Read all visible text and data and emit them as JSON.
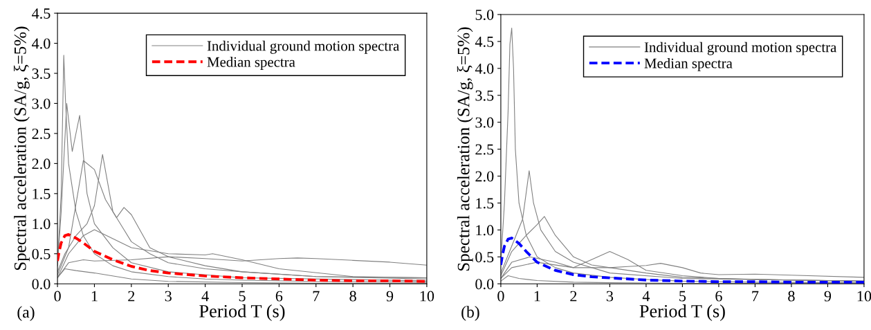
{
  "chart_data": [
    {
      "type": "line",
      "xlabel": "Period T (s)",
      "ylabel": "Spectral acceleration (SA/g, ξ=5%)",
      "xlim": [
        0,
        10
      ],
      "xticks": [
        0,
        1,
        2,
        3,
        4,
        5,
        6,
        7,
        8,
        9,
        10
      ],
      "ylim": [
        0,
        4.5
      ],
      "yticks": [
        {
          "value": 0,
          "label": "0.0"
        },
        {
          "value": 0.5,
          "label": "0.5"
        },
        {
          "value": 1,
          "label": "1.0"
        },
        {
          "value": 1.5,
          "label": "1.5"
        },
        {
          "value": 2,
          "label": "2.0"
        },
        {
          "value": 2.5,
          "label": "2.5"
        },
        {
          "value": 3,
          "label": "3.0"
        },
        {
          "value": 3.5,
          "label": "3.5"
        },
        {
          "value": 4,
          "label": "4.0"
        },
        {
          "value": 4.5,
          "label": "4.5"
        }
      ],
      "grid": false,
      "legend": "top right",
      "annotations": [
        "(a)"
      ],
      "series": [
        {
          "name": "Individual ground motion spectra",
          "color": "#808080",
          "line_style": "solid",
          "x": [
            0,
            0.1,
            0.17,
            0.22,
            0.3,
            0.4,
            0.5,
            0.7,
            1,
            1.5,
            2,
            3,
            4,
            5,
            7,
            10
          ],
          "values": [
            0.3,
            1.5,
            3.8,
            3.0,
            2.0,
            1.6,
            1.2,
            0.8,
            0.5,
            0.3,
            0.2,
            0.12,
            0.08,
            0.06,
            0.04,
            0.03
          ]
        },
        {
          "color": "#808080",
          "line_style": "solid",
          "x": [
            0,
            0.2,
            0.5,
            0.8,
            1.0,
            1.22,
            1.5,
            1.8,
            2.0,
            2.5,
            3,
            4,
            5,
            7,
            10
          ],
          "values": [
            0.2,
            0.5,
            0.8,
            1.0,
            1.3,
            2.15,
            1.2,
            0.9,
            0.7,
            0.5,
            0.35,
            0.25,
            0.2,
            0.12,
            0.08
          ]
        },
        {
          "color": "#808080",
          "line_style": "solid",
          "x": [
            0,
            0.3,
            0.7,
            1.0,
            1.3,
            1.6,
            1.8,
            2.0,
            2.5,
            3,
            4,
            5,
            7,
            10
          ],
          "values": [
            0.15,
            0.6,
            2.05,
            1.9,
            1.4,
            1.1,
            1.27,
            1.15,
            0.6,
            0.45,
            0.3,
            0.2,
            0.12,
            0.1
          ]
        },
        {
          "color": "#808080",
          "line_style": "solid",
          "x": [
            0,
            0.3,
            0.7,
            1,
            2,
            3,
            4,
            5,
            6,
            6.5,
            7,
            8,
            9,
            10
          ],
          "values": [
            0.1,
            0.35,
            0.4,
            0.38,
            0.4,
            0.45,
            0.42,
            0.38,
            0.42,
            0.43,
            0.42,
            0.39,
            0.36,
            0.31
          ]
        },
        {
          "color": "#808080",
          "line_style": "solid",
          "x": [
            0,
            0.3,
            0.7,
            1,
            2,
            3,
            4,
            4.2,
            5,
            6,
            8,
            10
          ],
          "values": [
            0.1,
            0.5,
            0.8,
            0.9,
            0.6,
            0.5,
            0.48,
            0.5,
            0.4,
            0.25,
            0.12,
            0.1
          ]
        },
        {
          "color": "#808080",
          "line_style": "solid",
          "x": [
            0,
            0.2,
            0.5,
            1,
            2,
            3,
            5,
            7,
            10
          ],
          "values": [
            0.1,
            0.25,
            0.22,
            0.18,
            0.08,
            0.04,
            0.02,
            0.01,
            0.01
          ]
        },
        {
          "color": "#808080",
          "line_style": "solid",
          "x": [
            0,
            0.1,
            0.25,
            0.4,
            0.6,
            0.8,
            1,
            1.5,
            2,
            3,
            5,
            10
          ],
          "values": [
            0.3,
            1.2,
            3.0,
            2.2,
            2.8,
            1.5,
            1.0,
            0.6,
            0.35,
            0.2,
            0.1,
            0.05
          ]
        },
        {
          "name": "Median spectra",
          "color": "#ff0000",
          "line_style": "dashed",
          "x": [
            0,
            0.05,
            0.1,
            0.2,
            0.3,
            0.5,
            0.7,
            1,
            1.5,
            2,
            2.5,
            3,
            4,
            5,
            6,
            7,
            8,
            9,
            10
          ],
          "values": [
            0.38,
            0.55,
            0.68,
            0.8,
            0.82,
            0.76,
            0.68,
            0.54,
            0.4,
            0.29,
            0.22,
            0.18,
            0.13,
            0.1,
            0.08,
            0.06,
            0.05,
            0.05,
            0.04
          ]
        }
      ]
    },
    {
      "type": "line",
      "xlabel": "Period T (s)",
      "ylabel": "Spectral acceleration (SA/g, ξ=5%)",
      "xlim": [
        0,
        10
      ],
      "xticks": [
        0,
        1,
        2,
        3,
        4,
        5,
        6,
        7,
        8,
        9,
        10
      ],
      "ylim": [
        0,
        5
      ],
      "yticks": [
        {
          "value": 0,
          "label": "0.0"
        },
        {
          "value": 0.5,
          "label": "0.5"
        },
        {
          "value": 1,
          "label": "1.0"
        },
        {
          "value": 1.5,
          "label": "1.5"
        },
        {
          "value": 2,
          "label": "2.0"
        },
        {
          "value": 2.5,
          "label": "2.5"
        },
        {
          "value": 3,
          "label": "3.0"
        },
        {
          "value": 3.5,
          "label": "3.5"
        },
        {
          "value": 4,
          "label": "4.0"
        },
        {
          "value": 4.5,
          "label": "4.5"
        },
        {
          "value": 5,
          "label": "5.0"
        }
      ],
      "grid": false,
      "legend": "top right",
      "annotations": [
        "(b)"
      ],
      "series": [
        {
          "name": "Individual ground motion spectra",
          "color": "#808080",
          "line_style": "solid",
          "x": [
            0,
            0.1,
            0.2,
            0.25,
            0.3,
            0.35,
            0.4,
            0.5,
            0.7,
            1,
            1.5,
            2,
            3,
            4,
            5,
            7,
            10
          ],
          "values": [
            0.4,
            1.5,
            3.2,
            4.45,
            4.75,
            4.0,
            2.5,
            1.5,
            0.9,
            0.5,
            0.3,
            0.2,
            0.12,
            0.08,
            0.05,
            0.03,
            0.02
          ]
        },
        {
          "color": "#808080",
          "line_style": "solid",
          "x": [
            0,
            0.3,
            0.6,
            0.78,
            0.9,
            1.1,
            1.5,
            2,
            3,
            5,
            10
          ],
          "values": [
            0.2,
            0.7,
            1.2,
            2.1,
            1.5,
            1.0,
            0.6,
            0.4,
            0.2,
            0.1,
            0.05
          ]
        },
        {
          "color": "#808080",
          "line_style": "solid",
          "x": [
            0,
            0.3,
            0.7,
            1.0,
            1.2,
            1.5,
            2,
            2.5,
            3,
            4,
            5,
            7,
            10
          ],
          "values": [
            0.15,
            0.6,
            0.9,
            1.1,
            1.25,
            0.9,
            0.5,
            0.35,
            0.3,
            0.2,
            0.12,
            0.08,
            0.05
          ]
        },
        {
          "color": "#808080",
          "line_style": "solid",
          "x": [
            0,
            0.3,
            0.8,
            1.5,
            2,
            2.5,
            3,
            3.5,
            4,
            5,
            6,
            8,
            10
          ],
          "values": [
            0.1,
            0.4,
            0.5,
            0.4,
            0.3,
            0.45,
            0.6,
            0.45,
            0.25,
            0.15,
            0.1,
            0.07,
            0.05
          ]
        },
        {
          "color": "#808080",
          "line_style": "solid",
          "x": [
            0,
            0.3,
            1,
            2,
            3,
            3.5,
            4,
            4.4,
            5,
            5.5,
            6,
            7,
            8,
            10
          ],
          "values": [
            0.1,
            0.3,
            0.4,
            0.3,
            0.3,
            0.32,
            0.34,
            0.38,
            0.3,
            0.2,
            0.17,
            0.18,
            0.16,
            0.12
          ]
        },
        {
          "color": "#808080",
          "line_style": "solid",
          "x": [
            0,
            0.2,
            0.5,
            1,
            2,
            3,
            5,
            10
          ],
          "values": [
            0.05,
            0.15,
            0.1,
            0.06,
            0.03,
            0.02,
            0.01,
            0.01
          ]
        },
        {
          "name": "Median spectra",
          "color": "#0000ff",
          "line_style": "dashed",
          "x": [
            0,
            0.05,
            0.1,
            0.2,
            0.3,
            0.5,
            0.7,
            1,
            1.5,
            2,
            2.5,
            3,
            4,
            5,
            6,
            7,
            8,
            9,
            10
          ],
          "values": [
            0.35,
            0.55,
            0.7,
            0.83,
            0.85,
            0.75,
            0.6,
            0.4,
            0.25,
            0.17,
            0.13,
            0.11,
            0.07,
            0.05,
            0.04,
            0.04,
            0.03,
            0.03,
            0.03
          ]
        }
      ]
    }
  ]
}
